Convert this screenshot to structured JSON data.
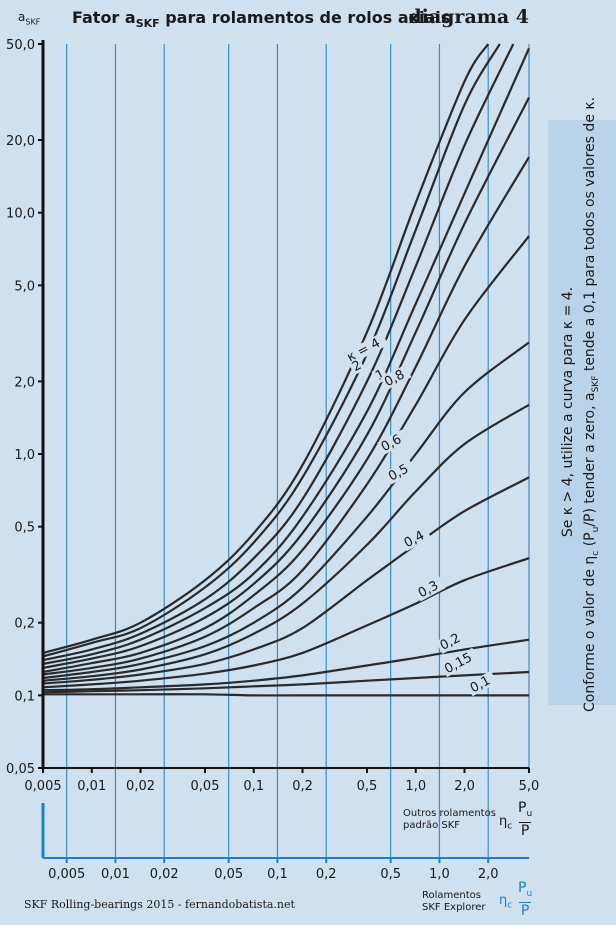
{
  "header": {
    "title_prefix": "Fator a",
    "title_sub": "SKF",
    "title_suffix": " para rolamentos de rolos axiais",
    "diagram_label": "diagrama 4",
    "ylabel_main": "a",
    "ylabel_sub": "SKF"
  },
  "footer": {
    "credit": "SKF Rolling-bearings 2015 - fernandobatista.net"
  },
  "side_note": {
    "line1": "Se κ > 4, utilize a curva para κ = 4.",
    "line2_a": "Conforme o valor de η",
    "line2_b": "c",
    "line2_c": " (P",
    "line2_d": "u",
    "line2_e": "/P) tender a zero, a",
    "line2_f": "SKF",
    "line2_g": " tende a 0,1 para todos os valores de κ."
  },
  "axis1": {
    "note_line1": "Outros rolamentos",
    "note_line2": "padrão SKF",
    "eta": "η",
    "eta_sub": "c",
    "frac_num": "P",
    "frac_num_sub": "u",
    "frac_den": "P"
  },
  "axis2": {
    "note_line1": "Rolamentos",
    "note_line2": "SKF Explorer",
    "eta": "η",
    "eta_sub": "c",
    "frac_num": "P",
    "frac_num_sub": "u",
    "frac_den": "P"
  },
  "colors": {
    "curve": "#2a2a2a",
    "grid": "#3a8fc4",
    "axis2": "#1f7fc4",
    "background": "#cfe0ef"
  },
  "chart_data": {
    "type": "line",
    "xscale": "log",
    "yscale": "log",
    "xlim": [
      0.005,
      5.0
    ],
    "ylim": [
      0.05,
      50.0
    ],
    "x_ticks": [
      "0,005",
      "0,01",
      "0,02",
      "0,05",
      "0,1",
      "0,2",
      "0,5",
      "1,0",
      "2,0",
      "5,0"
    ],
    "x_tick_values": [
      0.005,
      0.01,
      0.02,
      0.05,
      0.1,
      0.2,
      0.5,
      1.0,
      2.0,
      5.0
    ],
    "y_ticks": [
      "0,05",
      "0,1",
      "0,2",
      "0,5",
      "1,0",
      "2,0",
      "5,0",
      "10,0",
      "20,0",
      "50,0"
    ],
    "y_tick_values": [
      0.05,
      0.1,
      0.2,
      0.5,
      1.0,
      2.0,
      5.0,
      10.0,
      20.0,
      50.0
    ],
    "x2_ticks": [
      "0,005",
      "0,01",
      "0,02",
      "0,05",
      "0,1",
      "0,2",
      "0,5",
      "1,0",
      "2,0"
    ],
    "x2_tick_values": [
      0.007,
      0.014,
      0.028,
      0.07,
      0.14,
      0.28,
      0.7,
      1.4,
      2.8
    ],
    "grid": "vertical",
    "series": [
      {
        "name": "κ = 4",
        "x": [
          0.005,
          0.01,
          0.02,
          0.05,
          0.1,
          0.2,
          0.5,
          1.0,
          2.0,
          2.8
        ],
        "y": [
          0.15,
          0.17,
          0.2,
          0.3,
          0.47,
          0.9,
          3.2,
          11,
          35,
          50
        ]
      },
      {
        "name": "2",
        "x": [
          0.005,
          0.01,
          0.02,
          0.05,
          0.1,
          0.2,
          0.5,
          1.0,
          2.0,
          3.3
        ],
        "y": [
          0.145,
          0.165,
          0.19,
          0.28,
          0.43,
          0.8,
          2.6,
          8.5,
          28,
          50
        ]
      },
      {
        "name": "",
        "x": [
          0.005,
          0.01,
          0.02,
          0.05,
          0.1,
          0.2,
          0.5,
          1.0,
          2.0,
          4.0
        ],
        "y": [
          0.14,
          0.155,
          0.18,
          0.25,
          0.37,
          0.65,
          2.0,
          6.0,
          19,
          50
        ]
      },
      {
        "name": "1",
        "x": [
          0.005,
          0.01,
          0.02,
          0.05,
          0.1,
          0.2,
          0.5,
          1.0,
          2.0,
          5.0
        ],
        "y": [
          0.135,
          0.148,
          0.17,
          0.23,
          0.32,
          0.55,
          1.5,
          4.2,
          12,
          48
        ]
      },
      {
        "name": "0,8",
        "x": [
          0.005,
          0.01,
          0.02,
          0.05,
          0.1,
          0.2,
          0.5,
          1.0,
          2.0,
          5.0
        ],
        "y": [
          0.13,
          0.142,
          0.16,
          0.21,
          0.29,
          0.47,
          1.2,
          3.2,
          9,
          30
        ]
      },
      {
        "name": "",
        "x": [
          0.005,
          0.01,
          0.02,
          0.05,
          0.1,
          0.2,
          0.5,
          1.0,
          2.0,
          5.0
        ],
        "y": [
          0.125,
          0.136,
          0.15,
          0.19,
          0.26,
          0.4,
          0.95,
          2.3,
          6,
          17
        ]
      },
      {
        "name": "0,6",
        "x": [
          0.005,
          0.01,
          0.02,
          0.05,
          0.1,
          0.2,
          0.5,
          1.0,
          2.0,
          5.0
        ],
        "y": [
          0.122,
          0.13,
          0.142,
          0.175,
          0.23,
          0.33,
          0.75,
          1.6,
          3.6,
          8
        ]
      },
      {
        "name": "0,5",
        "x": [
          0.005,
          0.01,
          0.02,
          0.05,
          0.1,
          0.2,
          0.5,
          1.0,
          2.0,
          5.0
        ],
        "y": [
          0.118,
          0.125,
          0.135,
          0.16,
          0.2,
          0.28,
          0.55,
          1.0,
          1.8,
          2.9
        ]
      },
      {
        "name": "",
        "x": [
          0.005,
          0.01,
          0.02,
          0.05,
          0.1,
          0.2,
          0.5,
          1.0,
          2.0,
          5.0
        ],
        "y": [
          0.115,
          0.12,
          0.128,
          0.148,
          0.18,
          0.24,
          0.42,
          0.7,
          1.1,
          1.6
        ]
      },
      {
        "name": "0,4",
        "x": [
          0.005,
          0.01,
          0.02,
          0.05,
          0.1,
          0.2,
          0.5,
          1.0,
          2.0,
          5.0
        ],
        "y": [
          0.112,
          0.116,
          0.122,
          0.135,
          0.155,
          0.19,
          0.3,
          0.42,
          0.58,
          0.8
        ]
      },
      {
        "name": "0,3",
        "x": [
          0.005,
          0.01,
          0.02,
          0.05,
          0.1,
          0.2,
          0.5,
          1.0,
          2.0,
          5.0
        ],
        "y": [
          0.108,
          0.111,
          0.115,
          0.123,
          0.133,
          0.15,
          0.195,
          0.24,
          0.3,
          0.37
        ]
      },
      {
        "name": "0,2",
        "x": [
          0.005,
          0.01,
          0.02,
          0.05,
          0.1,
          0.2,
          0.5,
          1.0,
          2.0,
          5.0
        ],
        "y": [
          0.105,
          0.106,
          0.108,
          0.111,
          0.115,
          0.121,
          0.133,
          0.143,
          0.155,
          0.17
        ]
      },
      {
        "name": "0,15",
        "x": [
          0.005,
          0.01,
          0.02,
          0.05,
          0.1,
          0.2,
          0.5,
          1.0,
          2.0,
          5.0
        ],
        "y": [
          0.103,
          0.104,
          0.105,
          0.107,
          0.109,
          0.111,
          0.115,
          0.118,
          0.121,
          0.125
        ]
      },
      {
        "name": "0,1",
        "x": [
          0.005,
          0.01,
          0.02,
          0.05,
          0.1,
          0.2,
          0.5,
          1.0,
          2.0,
          5.0
        ],
        "y": [
          0.101,
          0.101,
          0.101,
          0.101,
          0.1,
          0.1,
          0.1,
          0.1,
          0.1,
          0.1
        ]
      }
    ]
  }
}
